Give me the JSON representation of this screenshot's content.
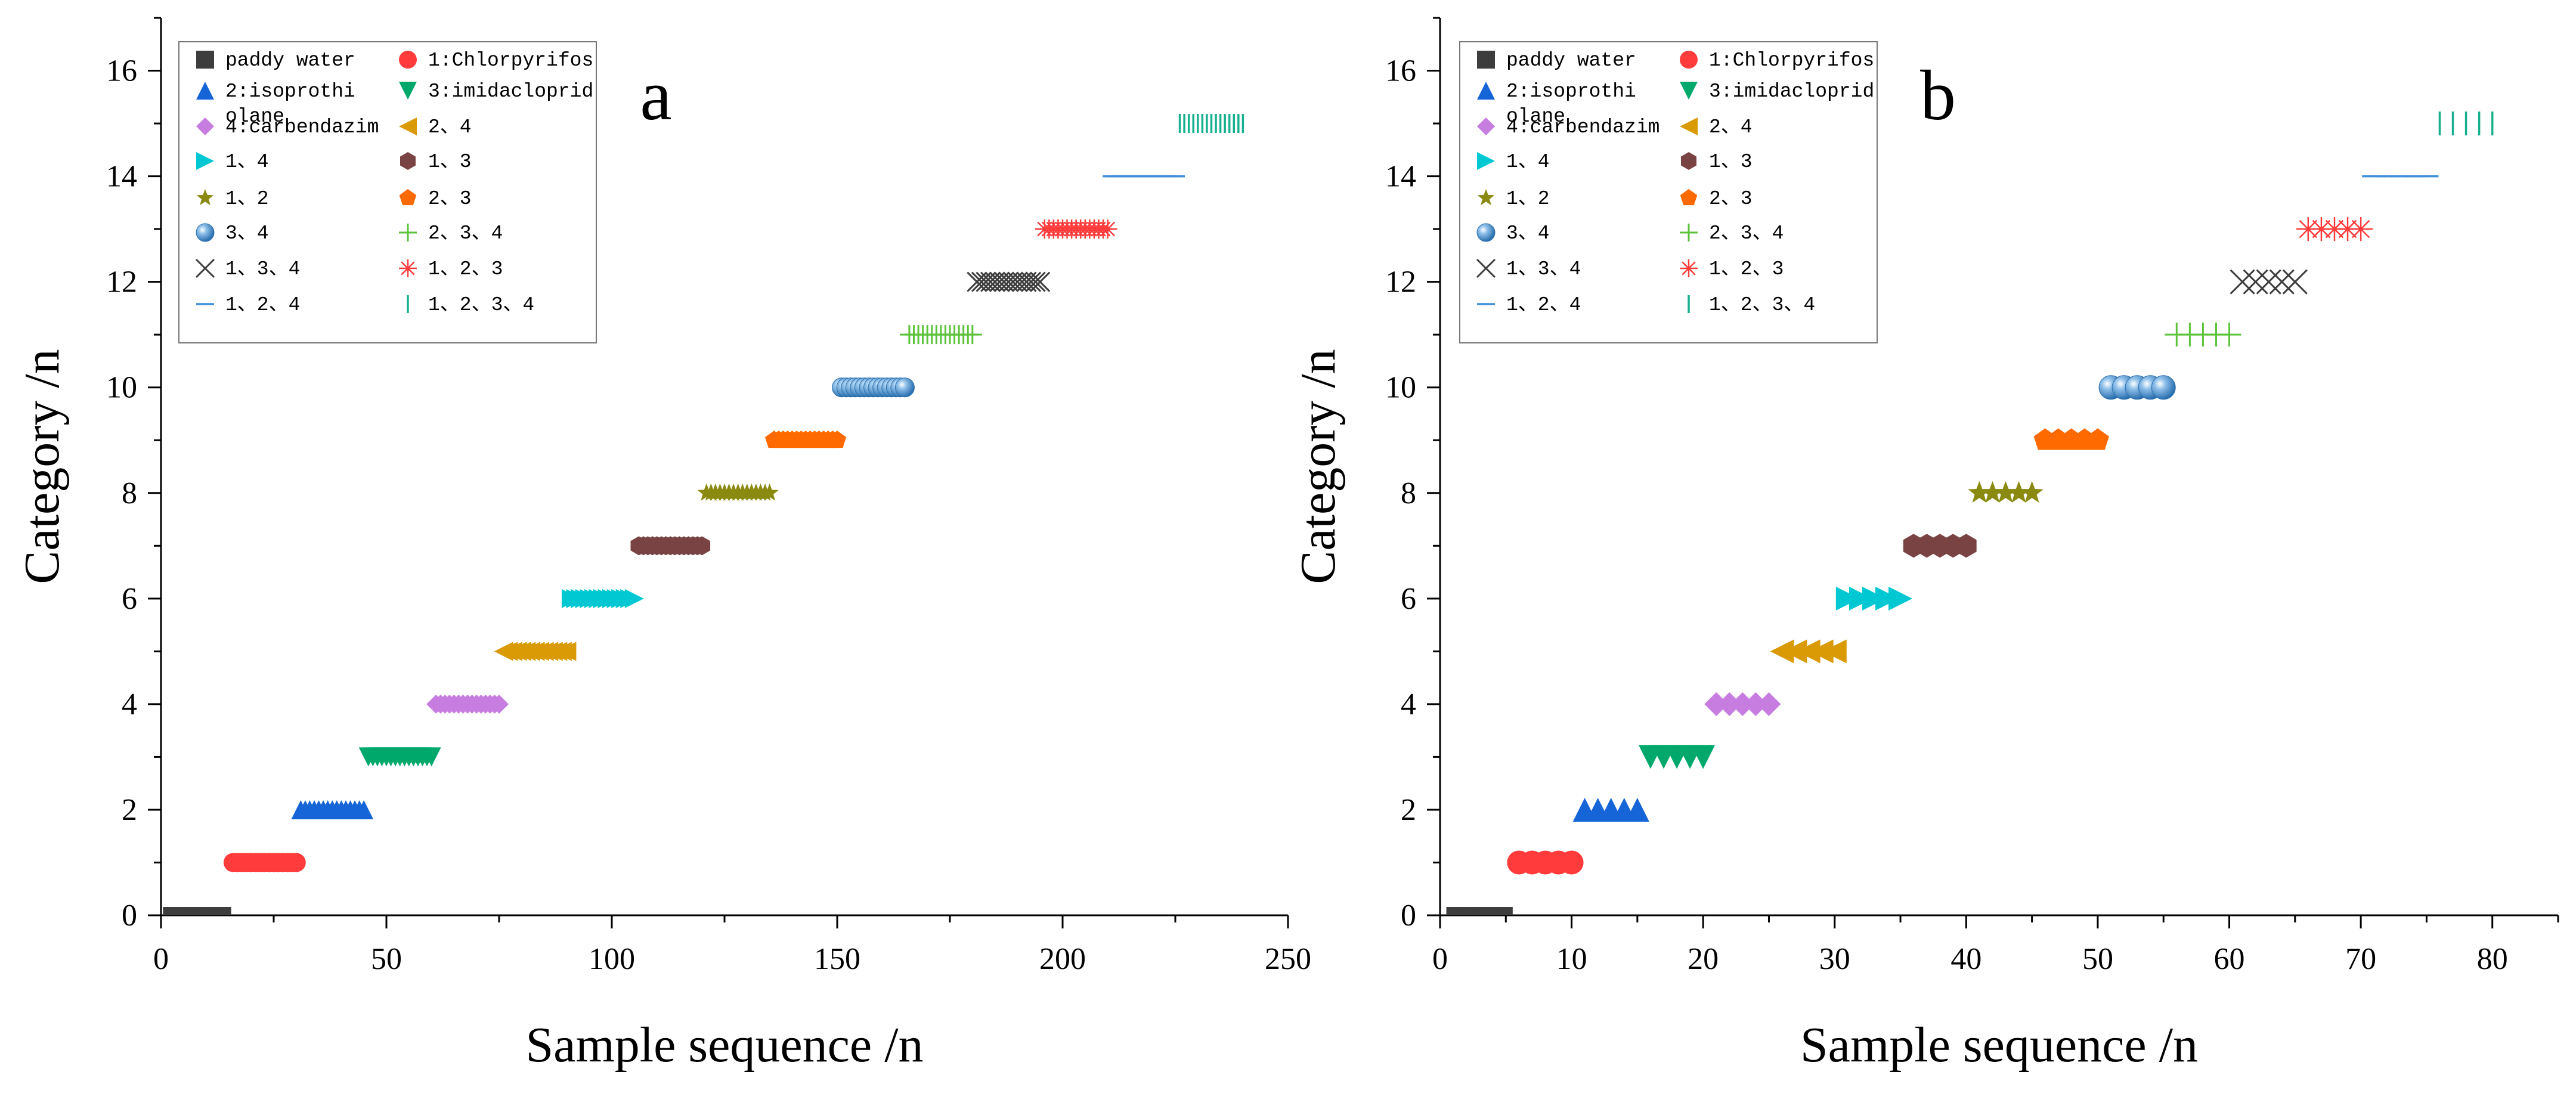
{
  "chart_data": [
    {
      "type": "scatter",
      "panel_label": "a",
      "xlabel": "Sample sequence /n",
      "ylabel": "Category /n",
      "xlim": [
        0,
        250
      ],
      "ylim": [
        0,
        17
      ],
      "xticks": [
        0,
        50,
        100,
        150,
        200,
        250
      ],
      "xticks_minor": [
        25,
        75,
        125,
        175,
        225
      ],
      "yticks": [
        0,
        2,
        4,
        6,
        8,
        10,
        12,
        14,
        16
      ],
      "yticks_minor": [
        1,
        3,
        5,
        7,
        9,
        11,
        13,
        15,
        17
      ],
      "legend_position": "top-left",
      "samples_per_category": 15,
      "series": [
        {
          "name": "paddy water",
          "category": 0,
          "x_start": 1,
          "x_end": 15
        },
        {
          "name": "1:Chlorpyrifos",
          "category": 1,
          "x_start": 16,
          "x_end": 30
        },
        {
          "name": "2:isoprothiolane",
          "category": 2,
          "x_start": 31,
          "x_end": 45
        },
        {
          "name": "3:imidacloprid",
          "category": 3,
          "x_start": 46,
          "x_end": 60
        },
        {
          "name": "4:carbendazim",
          "category": 4,
          "x_start": 61,
          "x_end": 75
        },
        {
          "name": "2、4",
          "category": 5,
          "x_start": 76,
          "x_end": 90
        },
        {
          "name": "1、4",
          "category": 6,
          "x_start": 91,
          "x_end": 105
        },
        {
          "name": "1、3",
          "category": 7,
          "x_start": 106,
          "x_end": 120
        },
        {
          "name": "1、2",
          "category": 8,
          "x_start": 121,
          "x_end": 135
        },
        {
          "name": "2、3",
          "category": 9,
          "x_start": 136,
          "x_end": 150
        },
        {
          "name": "3、4",
          "category": 10,
          "x_start": 151,
          "x_end": 165
        },
        {
          "name": "2、3、4",
          "category": 11,
          "x_start": 166,
          "x_end": 180
        },
        {
          "name": "1、3、4",
          "category": 12,
          "x_start": 181,
          "x_end": 195
        },
        {
          "name": "1、2、3",
          "category": 13,
          "x_start": 196,
          "x_end": 210
        },
        {
          "name": "1、2、4",
          "category": 14,
          "x_start": 211,
          "x_end": 225
        },
        {
          "name": "1、2、3、4",
          "category": 15,
          "x_start": 226,
          "x_end": 240
        }
      ]
    },
    {
      "type": "scatter",
      "panel_label": "b",
      "xlabel": "Sample sequence /n",
      "ylabel": "Category /n",
      "xlim": [
        0,
        85
      ],
      "ylim": [
        0,
        17
      ],
      "xticks": [
        0,
        10,
        20,
        30,
        40,
        50,
        60,
        70,
        80
      ],
      "xticks_minor": [
        5,
        15,
        25,
        35,
        45,
        55,
        65,
        75,
        85
      ],
      "yticks": [
        0,
        2,
        4,
        6,
        8,
        10,
        12,
        14,
        16
      ],
      "yticks_minor": [
        1,
        3,
        5,
        7,
        9,
        11,
        13,
        15,
        17
      ],
      "legend_position": "top-left",
      "samples_per_category": 5,
      "series": [
        {
          "name": "paddy water",
          "category": 0,
          "x_start": 1,
          "x_end": 5
        },
        {
          "name": "1:Chlorpyrifos",
          "category": 1,
          "x_start": 6,
          "x_end": 10
        },
        {
          "name": "2:isoprothiolane",
          "category": 2,
          "x_start": 11,
          "x_end": 15
        },
        {
          "name": "3:imidacloprid",
          "category": 3,
          "x_start": 16,
          "x_end": 20
        },
        {
          "name": "4:carbendazim",
          "category": 4,
          "x_start": 21,
          "x_end": 25
        },
        {
          "name": "2、4",
          "category": 5,
          "x_start": 26,
          "x_end": 30
        },
        {
          "name": "1、4",
          "category": 6,
          "x_start": 31,
          "x_end": 35
        },
        {
          "name": "1、3",
          "category": 7,
          "x_start": 36,
          "x_end": 40
        },
        {
          "name": "1、2",
          "category": 8,
          "x_start": 41,
          "x_end": 45
        },
        {
          "name": "2、3",
          "category": 9,
          "x_start": 46,
          "x_end": 50
        },
        {
          "name": "3、4",
          "category": 10,
          "x_start": 51,
          "x_end": 55
        },
        {
          "name": "2、3、4",
          "category": 11,
          "x_start": 56,
          "x_end": 60
        },
        {
          "name": "1、3、4",
          "category": 12,
          "x_start": 61,
          "x_end": 65
        },
        {
          "name": "1、2、3",
          "category": 13,
          "x_start": 66,
          "x_end": 70
        },
        {
          "name": "1、2、4",
          "category": 14,
          "x_start": 71,
          "x_end": 75
        },
        {
          "name": "1、2、3、4",
          "category": 15,
          "x_start": 76,
          "x_end": 80
        }
      ]
    }
  ],
  "legend": {
    "entries": [
      {
        "label_lines": [
          "paddy water"
        ],
        "marker": "square",
        "color": "#3d3d3d"
      },
      {
        "label_lines": [
          "1:Chlorpyrifos"
        ],
        "marker": "circle",
        "color": "#ff3b3b"
      },
      {
        "label_lines": [
          "2:isoprothi",
          "olane"
        ],
        "marker": "triangle-up",
        "color": "#1565d8"
      },
      {
        "label_lines": [
          "3:imidacloprid"
        ],
        "marker": "triangle-down",
        "color": "#00a86b"
      },
      {
        "label_lines": [
          "4:carbendazim"
        ],
        "marker": "diamond",
        "color": "#c77ddf"
      },
      {
        "label_lines": [
          "2、4"
        ],
        "marker": "triangle-left",
        "color": "#d99a06"
      },
      {
        "label_lines": [
          "1、4"
        ],
        "marker": "triangle-right",
        "color": "#00c8d2"
      },
      {
        "label_lines": [
          "1、3"
        ],
        "marker": "hexagon",
        "color": "#7a4343"
      },
      {
        "label_lines": [
          "1、2"
        ],
        "marker": "star",
        "color": "#8a8a10"
      },
      {
        "label_lines": [
          "2、3"
        ],
        "marker": "pentagon",
        "color": "#ff6a00"
      },
      {
        "label_lines": [
          "3、4"
        ],
        "marker": "sphere",
        "color": "#3e86c6"
      },
      {
        "label_lines": [
          "2、3、4"
        ],
        "marker": "plus",
        "color": "#5bc23a"
      },
      {
        "label_lines": [
          "1、3、4"
        ],
        "marker": "x",
        "color": "#3d3d3d"
      },
      {
        "label_lines": [
          "1、2、3"
        ],
        "marker": "asterisk",
        "color": "#ff3b3b"
      },
      {
        "label_lines": [
          "1、2、4"
        ],
        "marker": "hline",
        "color": "#3e8fd8"
      },
      {
        "label_lines": [
          "1、2、3、4"
        ],
        "marker": "vline",
        "color": "#17b08f"
      }
    ]
  }
}
